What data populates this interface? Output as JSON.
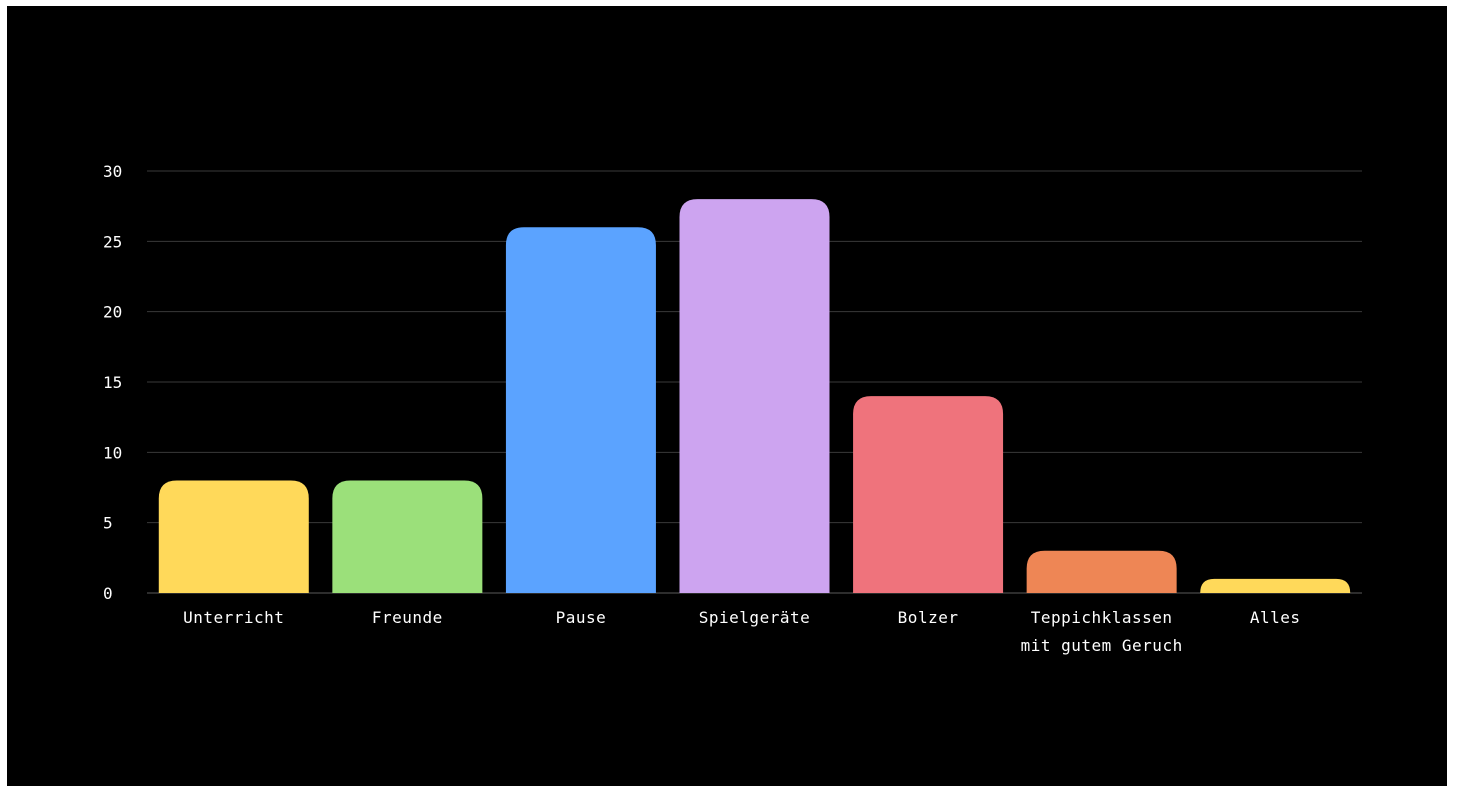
{
  "chart_data": {
    "type": "bar",
    "title": "",
    "xlabel": "",
    "ylabel": "",
    "ylim": [
      0,
      30
    ],
    "yticks": [
      0,
      5,
      10,
      15,
      20,
      25,
      30
    ],
    "grid": true,
    "legend": "none",
    "categories": [
      [
        "Unterricht"
      ],
      [
        "Freunde"
      ],
      [
        "Pause"
      ],
      [
        "Spielgeräte"
      ],
      [
        "Bolzer"
      ],
      [
        "Teppichklassen",
        "mit gutem Geruch"
      ],
      [
        "Alles"
      ]
    ],
    "values": [
      8,
      8,
      26,
      28,
      14,
      3,
      1
    ],
    "colors": [
      "#FFD95A",
      "#9BE07A",
      "#5BA3FF",
      "#CDA4F0",
      "#EF737C",
      "#EE8655",
      "#FFD95A"
    ]
  }
}
